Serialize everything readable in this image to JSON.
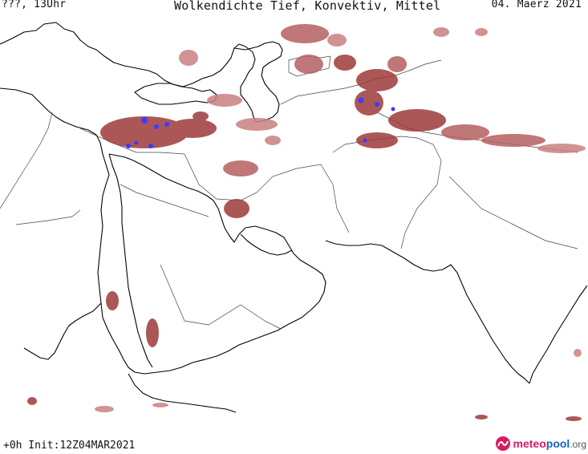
{
  "header": {
    "left": "???, 13Uhr",
    "title": "Wolkendichte   Tief, Konvektiv, Mittel",
    "date": "04. Maerz 2021"
  },
  "footer": {
    "run_info": "+0h  Init:12Z04MAR2021"
  },
  "logo": {
    "part1": "meteo",
    "part2": "pool",
    "part3": ".org"
  },
  "colors": {
    "cloud_low": "#9e3a3a",
    "cloud_low_light": "#c98080",
    "convective": "#3b3bff",
    "coastline": "#000000",
    "border": "#333333"
  },
  "icons": {
    "logo_mark": "meteopool-logo-icon"
  }
}
